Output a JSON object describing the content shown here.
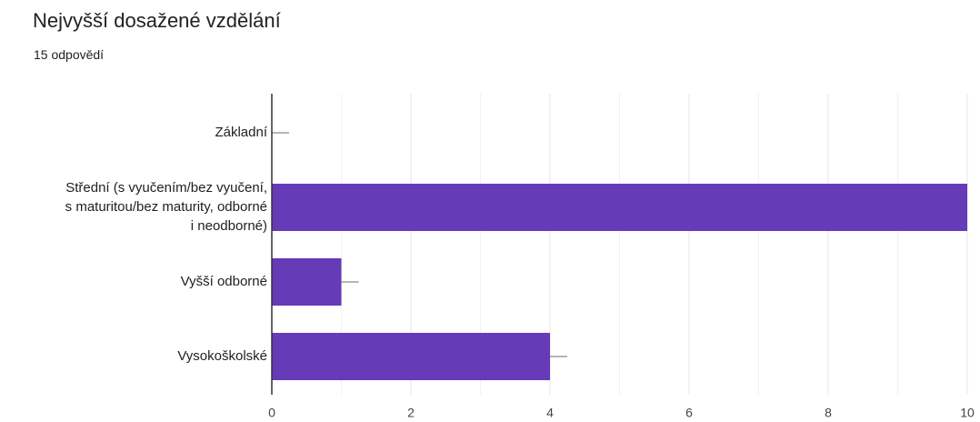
{
  "header": {
    "title": "Nejvyšší dosažené vzdělání",
    "response_count": "15 odpovědí"
  },
  "colors": {
    "bar": "#673ab7",
    "grid": "#e6e6e6",
    "axis": "#333333",
    "error_bar": "#9e9e9e",
    "text": "#202124"
  },
  "chart_data": {
    "type": "bar",
    "orientation": "horizontal",
    "title": "Nejvyšší dosažené vzdělání",
    "subtitle": "15 odpovědí",
    "categories": [
      [
        "Základní"
      ],
      [
        "Střední (s vyučením/bez vyučení,",
        "s maturitou/bez maturity, odborné",
        "i neodborné)"
      ],
      [
        "Vyšší odborné"
      ],
      [
        "Vysokoškolské"
      ]
    ],
    "values": [
      0,
      10,
      1,
      4
    ],
    "xlim": [
      0,
      10
    ],
    "xticks": [
      "0",
      "2",
      "4",
      "6",
      "8",
      "10"
    ],
    "grid": true,
    "error_bars": true
  }
}
